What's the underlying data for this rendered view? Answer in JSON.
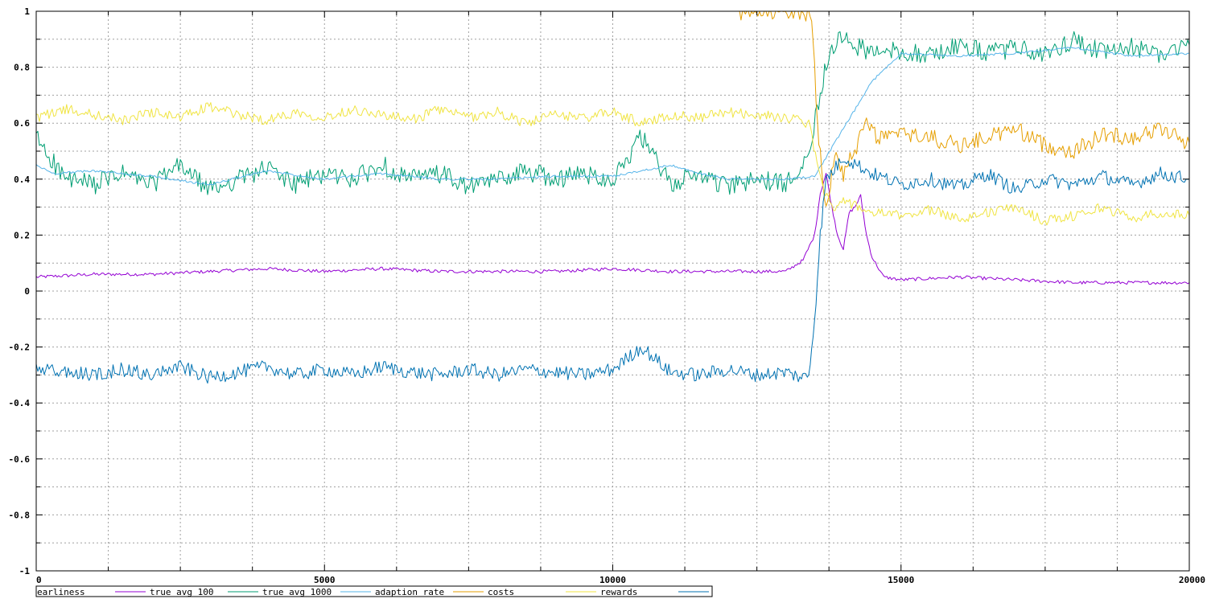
{
  "chart_data": {
    "type": "line",
    "title": "",
    "xlabel": "",
    "ylabel": "",
    "xlim": [
      0,
      20000
    ],
    "ylim": [
      -1,
      1
    ],
    "grid": true,
    "legend_position": "bottom",
    "x_ticks": [
      0,
      5000,
      10000,
      15000,
      20000
    ],
    "x_tick_labels": [
      "0",
      "5000",
      "10000",
      "15000",
      "20000"
    ],
    "x_minor_step": 1250,
    "y_ticks": [
      1,
      0.8,
      0.6,
      0.4,
      0.2,
      0,
      -0.2,
      -0.4,
      -0.6,
      -0.8,
      -1
    ],
    "y_tick_labels": [
      "1",
      "0.8",
      "0.6",
      "0.4",
      "0.2",
      "0",
      "-0.2",
      "-0.4",
      "-0.6",
      "-0.8",
      "-1"
    ],
    "y_minor_step": 0.1,
    "series": [
      {
        "name": "earliness",
        "color": "#9400d3",
        "x": [
          0,
          1000,
          2000,
          3000,
          4000,
          5000,
          6000,
          7000,
          8000,
          9000,
          10000,
          11000,
          12000,
          13000,
          13300,
          13500,
          13600,
          13700,
          13800,
          13900,
          14000,
          14100,
          14200,
          14300,
          14400,
          14500,
          14700,
          15000,
          16000,
          17000,
          18000,
          19000,
          20000
        ],
        "y": [
          0.05,
          0.06,
          0.06,
          0.07,
          0.08,
          0.07,
          0.08,
          0.07,
          0.07,
          0.07,
          0.08,
          0.07,
          0.07,
          0.07,
          0.11,
          0.2,
          0.35,
          0.42,
          0.3,
          0.2,
          0.15,
          0.28,
          0.3,
          0.34,
          0.2,
          0.12,
          0.05,
          0.04,
          0.05,
          0.04,
          0.03,
          0.03,
          0.03
        ]
      },
      {
        "name": "true avg 100",
        "color": "#009e73",
        "x": [
          0,
          500,
          1000,
          1500,
          2000,
          2500,
          3000,
          3500,
          4000,
          4500,
          5000,
          5500,
          6000,
          6500,
          7000,
          7500,
          8000,
          8500,
          9000,
          9500,
          10000,
          10500,
          11000,
          11500,
          12000,
          12500,
          13000,
          13400,
          13600,
          13700,
          13800,
          14000,
          14500,
          15000,
          15500,
          16000,
          16500,
          17000,
          17500,
          18000,
          18500,
          19000,
          19500,
          20000
        ],
        "y": [
          0.55,
          0.4,
          0.38,
          0.42,
          0.38,
          0.45,
          0.36,
          0.4,
          0.44,
          0.38,
          0.42,
          0.4,
          0.45,
          0.4,
          0.42,
          0.37,
          0.4,
          0.43,
          0.4,
          0.42,
          0.4,
          0.55,
          0.38,
          0.42,
          0.37,
          0.4,
          0.38,
          0.5,
          0.7,
          0.82,
          0.88,
          0.9,
          0.85,
          0.86,
          0.84,
          0.88,
          0.85,
          0.87,
          0.84,
          0.9,
          0.85,
          0.87,
          0.85,
          0.88
        ]
      },
      {
        "name": "true avg 1000",
        "color": "#56b4e9",
        "x": [
          0,
          300,
          1000,
          2000,
          3000,
          4000,
          5000,
          6000,
          7000,
          8000,
          9000,
          10000,
          10500,
          11000,
          11500,
          12000,
          13000,
          13500,
          14000,
          14500,
          15000,
          16000,
          17000,
          18000,
          19000,
          20000
        ],
        "y": [
          0.45,
          0.42,
          0.43,
          0.41,
          0.38,
          0.43,
          0.4,
          0.42,
          0.4,
          0.4,
          0.41,
          0.41,
          0.43,
          0.45,
          0.42,
          0.4,
          0.4,
          0.41,
          0.58,
          0.75,
          0.85,
          0.84,
          0.85,
          0.87,
          0.84,
          0.85
        ]
      },
      {
        "name": "adaption rate",
        "color": "#e69f00",
        "x": [
          12200,
          12350,
          13300,
          13450,
          13550,
          13700,
          13850,
          14000,
          14200,
          14400,
          14600,
          15000,
          15500,
          16000,
          16500,
          17000,
          17500,
          18000,
          18500,
          19000,
          19500,
          20000
        ],
        "y": [
          0.99,
          0.99,
          1.0,
          0.98,
          0.6,
          0.3,
          0.48,
          0.42,
          0.5,
          0.6,
          0.55,
          0.56,
          0.55,
          0.52,
          0.55,
          0.58,
          0.52,
          0.5,
          0.56,
          0.55,
          0.58,
          0.53
        ]
      },
      {
        "name": "costs",
        "color": "#f0e442",
        "x": [
          0,
          500,
          1000,
          1500,
          2000,
          2500,
          3000,
          3500,
          4000,
          4500,
          5000,
          5500,
          6000,
          6500,
          7000,
          7500,
          8000,
          8500,
          9000,
          9500,
          10000,
          10500,
          11000,
          11500,
          12000,
          12500,
          13000,
          13400,
          13600,
          13800,
          14000,
          14500,
          15000,
          15500,
          16000,
          16500,
          17000,
          17500,
          18000,
          18500,
          19000,
          19500,
          20000
        ],
        "y": [
          0.62,
          0.65,
          0.63,
          0.61,
          0.64,
          0.62,
          0.66,
          0.63,
          0.61,
          0.64,
          0.62,
          0.65,
          0.63,
          0.61,
          0.65,
          0.62,
          0.64,
          0.6,
          0.63,
          0.62,
          0.64,
          0.6,
          0.63,
          0.62,
          0.64,
          0.63,
          0.62,
          0.6,
          0.4,
          0.3,
          0.32,
          0.28,
          0.27,
          0.29,
          0.26,
          0.28,
          0.3,
          0.25,
          0.27,
          0.3,
          0.26,
          0.28,
          0.27
        ]
      },
      {
        "name": "rewards",
        "color": "#0072b2",
        "x": [
          0,
          500,
          1000,
          1500,
          2000,
          2500,
          3000,
          3500,
          4000,
          4500,
          5000,
          5500,
          6000,
          6500,
          7000,
          7500,
          8000,
          8500,
          9000,
          9500,
          10000,
          10500,
          11000,
          11500,
          12000,
          12500,
          13000,
          13300,
          13400,
          13500,
          13600,
          13700,
          13900,
          14000,
          14500,
          15000,
          15500,
          16000,
          16500,
          17000,
          17500,
          18000,
          18500,
          19000,
          19500,
          20000
        ],
        "y": [
          -0.28,
          -0.29,
          -0.3,
          -0.28,
          -0.3,
          -0.27,
          -0.31,
          -0.29,
          -0.27,
          -0.3,
          -0.28,
          -0.3,
          -0.27,
          -0.29,
          -0.3,
          -0.28,
          -0.3,
          -0.28,
          -0.29,
          -0.3,
          -0.28,
          -0.2,
          -0.29,
          -0.3,
          -0.28,
          -0.3,
          -0.29,
          -0.31,
          -0.3,
          -0.1,
          0.2,
          0.4,
          0.45,
          0.48,
          0.42,
          0.38,
          0.4,
          0.37,
          0.42,
          0.36,
          0.4,
          0.38,
          0.41,
          0.38,
          0.42,
          0.4
        ]
      }
    ]
  }
}
